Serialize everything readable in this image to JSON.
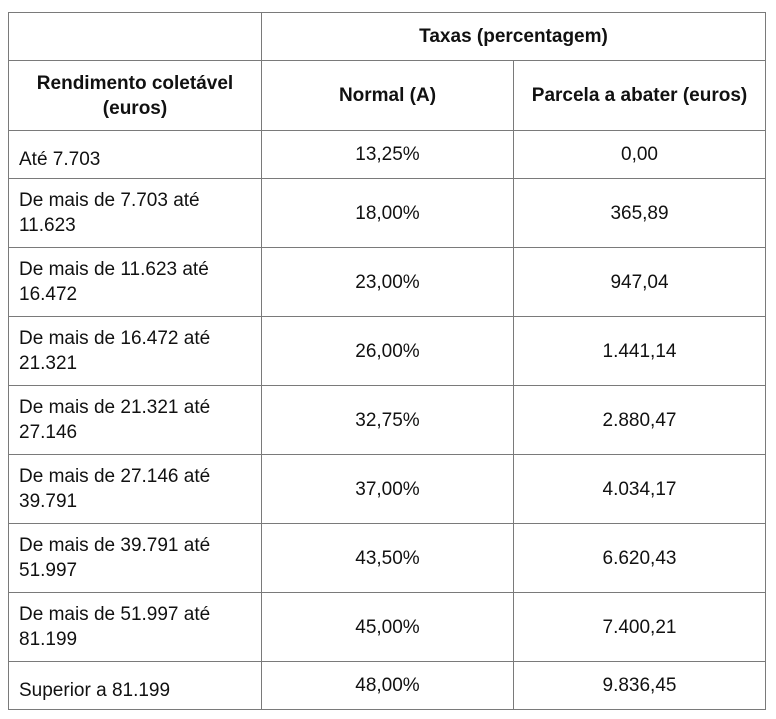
{
  "table": {
    "group_header": "Taxas (percentagem)",
    "columns": {
      "income": "Rendimento coletável (euros)",
      "normal": "Normal (A)",
      "deduction": "Parcela a abater (euros)"
    },
    "rows": [
      {
        "income": "Até 7.703",
        "rate": "13,25%",
        "deduction": "0,00"
      },
      {
        "income": "De mais de 7.703 até 11.623",
        "rate": "18,00%",
        "deduction": "365,89"
      },
      {
        "income": "De mais de 11.623 até 16.472",
        "rate": "23,00%",
        "deduction": "947,04"
      },
      {
        "income": "De mais de 16.472 até 21.321",
        "rate": "26,00%",
        "deduction": "1.441,14"
      },
      {
        "income": "De mais de 21.321 até 27.146",
        "rate": "32,75%",
        "deduction": "2.880,47"
      },
      {
        "income": "De mais de 27.146 até 39.791",
        "rate": "37,00%",
        "deduction": "4.034,17"
      },
      {
        "income": "De mais de 39.791 até 51.997",
        "rate": "43,50%",
        "deduction": "6.620,43"
      },
      {
        "income": "De mais de 51.997 até 81.199",
        "rate": "45,00%",
        "deduction": "7.400,21"
      },
      {
        "income": "Superior a 81.199",
        "rate": "48,00%",
        "deduction": "9.836,45"
      }
    ]
  }
}
